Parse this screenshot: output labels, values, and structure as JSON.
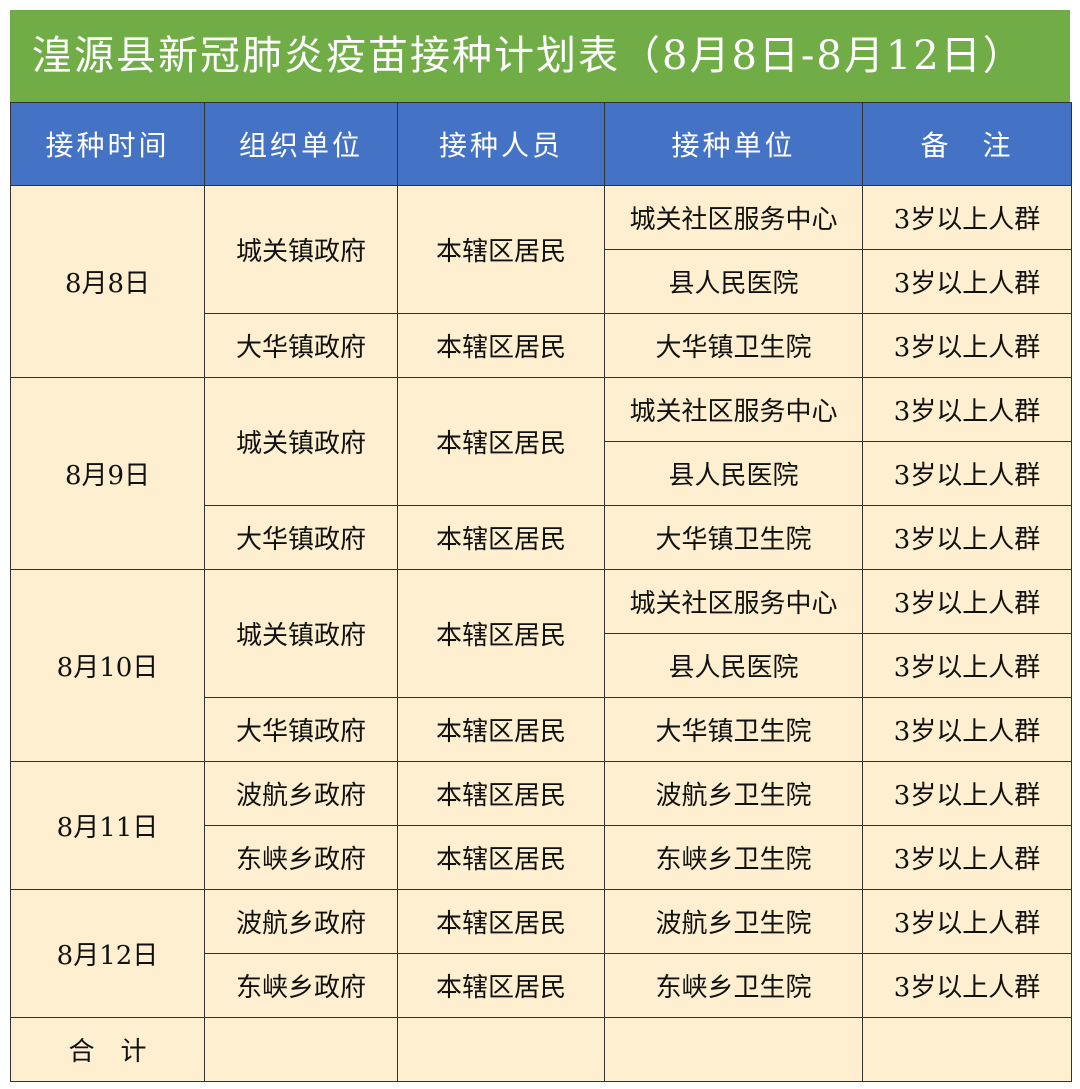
{
  "title": "湟源县新冠肺炎疫苗接种计划表（8月8日-8月12日）",
  "colors": {
    "title_bg": "#70ad47",
    "header_bg": "#4472c4",
    "cell_bg": "#fdefcf"
  },
  "headers": [
    "接种时间",
    "组织单位",
    "接种人员",
    "接种单位",
    "备　注"
  ],
  "days": [
    {
      "date": "8月8日",
      "groups": [
        {
          "org": "城关镇政府",
          "people": "本辖区居民",
          "sites": [
            {
              "site": "城关社区服务中心",
              "note": "3岁以上人群"
            },
            {
              "site": "县人民医院",
              "note": "3岁以上人群"
            }
          ]
        },
        {
          "org": "大华镇政府",
          "people": "本辖区居民",
          "sites": [
            {
              "site": "大华镇卫生院",
              "note": "3岁以上人群"
            }
          ]
        }
      ]
    },
    {
      "date": "8月9日",
      "groups": [
        {
          "org": "城关镇政府",
          "people": "本辖区居民",
          "sites": [
            {
              "site": "城关社区服务中心",
              "note": "3岁以上人群"
            },
            {
              "site": "县人民医院",
              "note": "3岁以上人群"
            }
          ]
        },
        {
          "org": "大华镇政府",
          "people": "本辖区居民",
          "sites": [
            {
              "site": "大华镇卫生院",
              "note": "3岁以上人群"
            }
          ]
        }
      ]
    },
    {
      "date": "8月10日",
      "groups": [
        {
          "org": "城关镇政府",
          "people": "本辖区居民",
          "sites": [
            {
              "site": "城关社区服务中心",
              "note": "3岁以上人群"
            },
            {
              "site": "县人民医院",
              "note": "3岁以上人群"
            }
          ]
        },
        {
          "org": "大华镇政府",
          "people": "本辖区居民",
          "sites": [
            {
              "site": "大华镇卫生院",
              "note": "3岁以上人群"
            }
          ]
        }
      ]
    },
    {
      "date": "8月11日",
      "groups": [
        {
          "org": "波航乡政府",
          "people": "本辖区居民",
          "sites": [
            {
              "site": "波航乡卫生院",
              "note": "3岁以上人群"
            }
          ]
        },
        {
          "org": "东峡乡政府",
          "people": "本辖区居民",
          "sites": [
            {
              "site": "东峡乡卫生院",
              "note": "3岁以上人群"
            }
          ]
        }
      ]
    },
    {
      "date": "8月12日",
      "groups": [
        {
          "org": "波航乡政府",
          "people": "本辖区居民",
          "sites": [
            {
              "site": "波航乡卫生院",
              "note": "3岁以上人群"
            }
          ]
        },
        {
          "org": "东峡乡政府",
          "people": "本辖区居民",
          "sites": [
            {
              "site": "东峡乡卫生院",
              "note": "3岁以上人群"
            }
          ]
        }
      ]
    }
  ],
  "total_label": "合　计"
}
